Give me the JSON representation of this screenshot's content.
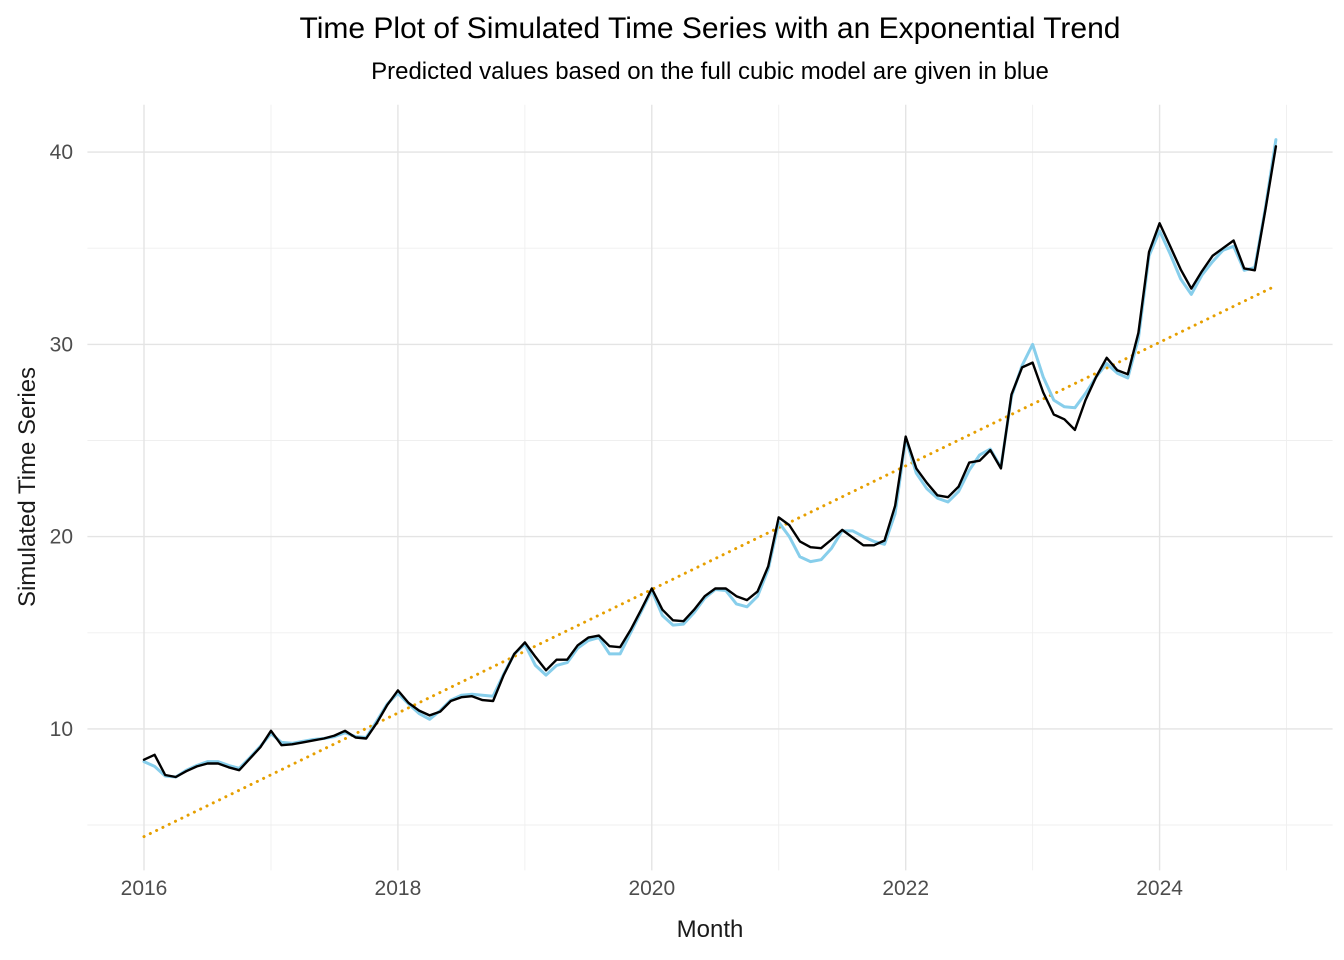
{
  "title": "Time Plot of Simulated Time Series with an Exponential Trend",
  "subtitle": "Predicted values based on the full cubic model are given in blue",
  "chart_data": {
    "type": "line",
    "title": "Time Plot of Simulated Time Series with an Exponential Trend",
    "subtitle": "Predicted values based on the full cubic model are given in blue",
    "xlabel": "Month",
    "ylabel": "Simulated Time Series",
    "x_start_year": 2016.0,
    "x_step_years": 0.0833333,
    "xlim": [
      2015.554,
      2025.363
    ],
    "ylim": [
      2.64,
      42.46
    ],
    "grid": true,
    "legend_position": "none",
    "background": "#ffffff",
    "grid_major_color": "#e4e4e4",
    "grid_minor_color": "#efefef",
    "x_axis": {
      "major_ticks": [
        {
          "value": 2016,
          "label": "2016"
        },
        {
          "value": 2018,
          "label": "2018"
        },
        {
          "value": 2020,
          "label": "2020"
        },
        {
          "value": 2022,
          "label": "2022"
        },
        {
          "value": 2024,
          "label": "2024"
        }
      ],
      "minor_ticks": [
        2017,
        2019,
        2021,
        2023,
        2025
      ]
    },
    "y_axis": {
      "major_ticks": [
        {
          "value": 10,
          "label": "10"
        },
        {
          "value": 20,
          "label": "20"
        },
        {
          "value": 30,
          "label": "30"
        },
        {
          "value": 40,
          "label": "40"
        }
      ],
      "minor_ticks": [
        5,
        15,
        25,
        35
      ]
    },
    "series": [
      {
        "name": "observed",
        "color": "#000000",
        "style": "solid",
        "stroke_width": 2.4,
        "values": [
          8.4,
          8.65,
          7.6,
          7.5,
          7.8,
          8.05,
          8.2,
          8.2,
          8.0,
          7.85,
          8.45,
          9.05,
          9.9,
          9.15,
          9.2,
          9.3,
          9.4,
          9.5,
          9.65,
          9.9,
          9.55,
          9.5,
          10.3,
          11.25,
          12.0,
          11.35,
          10.95,
          10.7,
          10.9,
          11.45,
          11.65,
          11.7,
          11.5,
          11.45,
          12.8,
          13.9,
          14.5,
          13.75,
          13.05,
          13.6,
          13.6,
          14.35,
          14.75,
          14.85,
          14.3,
          14.25,
          15.15,
          16.2,
          17.3,
          16.2,
          15.65,
          15.6,
          16.2,
          16.9,
          17.3,
          17.3,
          16.9,
          16.7,
          17.15,
          18.45,
          21.0,
          20.6,
          19.75,
          19.45,
          19.4,
          19.85,
          20.35,
          19.95,
          19.55,
          19.55,
          19.8,
          21.6,
          25.2,
          23.55,
          22.8,
          22.15,
          22.05,
          22.6,
          23.85,
          23.95,
          24.5,
          23.55,
          27.4,
          28.8,
          29.05,
          27.5,
          26.35,
          26.1,
          25.55,
          27.1,
          28.3,
          29.3,
          28.65,
          28.45,
          30.6,
          34.8,
          36.3,
          35.1,
          33.9,
          32.9,
          33.8,
          34.6,
          35.0,
          35.4,
          33.95,
          33.85,
          37.0,
          40.3
        ]
      },
      {
        "name": "predicted_full_cubic_model",
        "color": "#87ceeb",
        "style": "solid",
        "stroke_width": 3.0,
        "values": [
          8.3,
          8.05,
          7.55,
          7.5,
          7.85,
          8.1,
          8.3,
          8.3,
          8.1,
          7.95,
          8.5,
          9.1,
          9.75,
          9.3,
          9.25,
          9.35,
          9.45,
          9.5,
          9.6,
          9.8,
          9.6,
          9.55,
          10.4,
          11.3,
          11.85,
          11.3,
          10.8,
          10.5,
          10.95,
          11.5,
          11.75,
          11.8,
          11.75,
          11.7,
          12.85,
          13.9,
          14.4,
          13.3,
          12.8,
          13.3,
          13.45,
          14.2,
          14.6,
          14.75,
          13.9,
          13.9,
          15.0,
          16.1,
          17.2,
          15.9,
          15.4,
          15.45,
          16.05,
          16.8,
          17.25,
          17.2,
          16.5,
          16.35,
          16.9,
          18.3,
          20.75,
          20.0,
          18.95,
          18.7,
          18.8,
          19.4,
          20.3,
          20.3,
          20.0,
          19.75,
          19.6,
          21.2,
          25.1,
          23.3,
          22.5,
          22.0,
          21.8,
          22.35,
          23.45,
          24.25,
          24.55,
          23.6,
          27.3,
          28.9,
          30.0,
          28.3,
          27.1,
          26.75,
          26.7,
          27.45,
          28.3,
          29.0,
          28.5,
          28.25,
          30.3,
          34.6,
          35.9,
          34.7,
          33.4,
          32.6,
          33.6,
          34.3,
          34.9,
          35.1,
          33.85,
          34.0,
          37.1,
          40.65
        ]
      },
      {
        "name": "trend_line",
        "color": "#e69f00",
        "style": "dotted",
        "stroke_width": 3.0,
        "start": {
          "x": 2016.0,
          "y": 4.4
        },
        "end": {
          "x": 2024.917,
          "y": 33.05
        }
      }
    ]
  }
}
